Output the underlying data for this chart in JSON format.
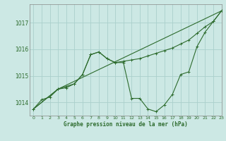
{
  "xlabel": "Graphe pression niveau de la mer (hPa)",
  "background_color": "#cce8e4",
  "grid_color": "#aad0cc",
  "line_color": "#2d6b2d",
  "ylim": [
    1013.5,
    1017.7
  ],
  "xlim": [
    -0.5,
    23
  ],
  "yticks": [
    1014,
    1015,
    1016,
    1017
  ],
  "xticks": [
    0,
    1,
    2,
    3,
    4,
    5,
    6,
    7,
    8,
    9,
    10,
    11,
    12,
    13,
    14,
    15,
    16,
    17,
    18,
    19,
    20,
    21,
    22,
    23
  ],
  "line1_x": [
    0,
    1,
    2,
    3,
    4,
    5,
    6,
    7,
    8,
    9,
    10,
    11,
    12,
    13,
    14,
    15,
    16,
    17,
    18,
    19,
    20,
    21,
    22,
    23
  ],
  "line1_y": [
    1013.75,
    1014.1,
    1014.2,
    1014.5,
    1014.55,
    1014.7,
    1015.05,
    1015.8,
    1015.9,
    1015.65,
    1015.5,
    1015.55,
    1015.6,
    1015.65,
    1015.75,
    1015.85,
    1015.95,
    1016.05,
    1016.2,
    1016.35,
    1016.6,
    1016.85,
    1017.05,
    1017.45
  ],
  "line2_x": [
    0,
    3,
    4,
    5,
    6,
    7,
    8,
    9,
    10,
    11,
    12,
    13,
    14,
    15,
    16,
    17,
    18,
    19,
    20,
    21,
    22,
    23
  ],
  "line2_y": [
    1013.75,
    1014.5,
    1014.6,
    1014.7,
    1015.05,
    1015.8,
    1015.9,
    1015.65,
    1015.5,
    1015.5,
    1014.15,
    1014.15,
    1013.75,
    1013.65,
    1013.9,
    1014.3,
    1015.05,
    1015.15,
    1016.1,
    1016.65,
    1017.05,
    1017.45
  ],
  "line3_x": [
    0,
    3,
    23
  ],
  "line3_y": [
    1013.75,
    1014.5,
    1017.45
  ]
}
